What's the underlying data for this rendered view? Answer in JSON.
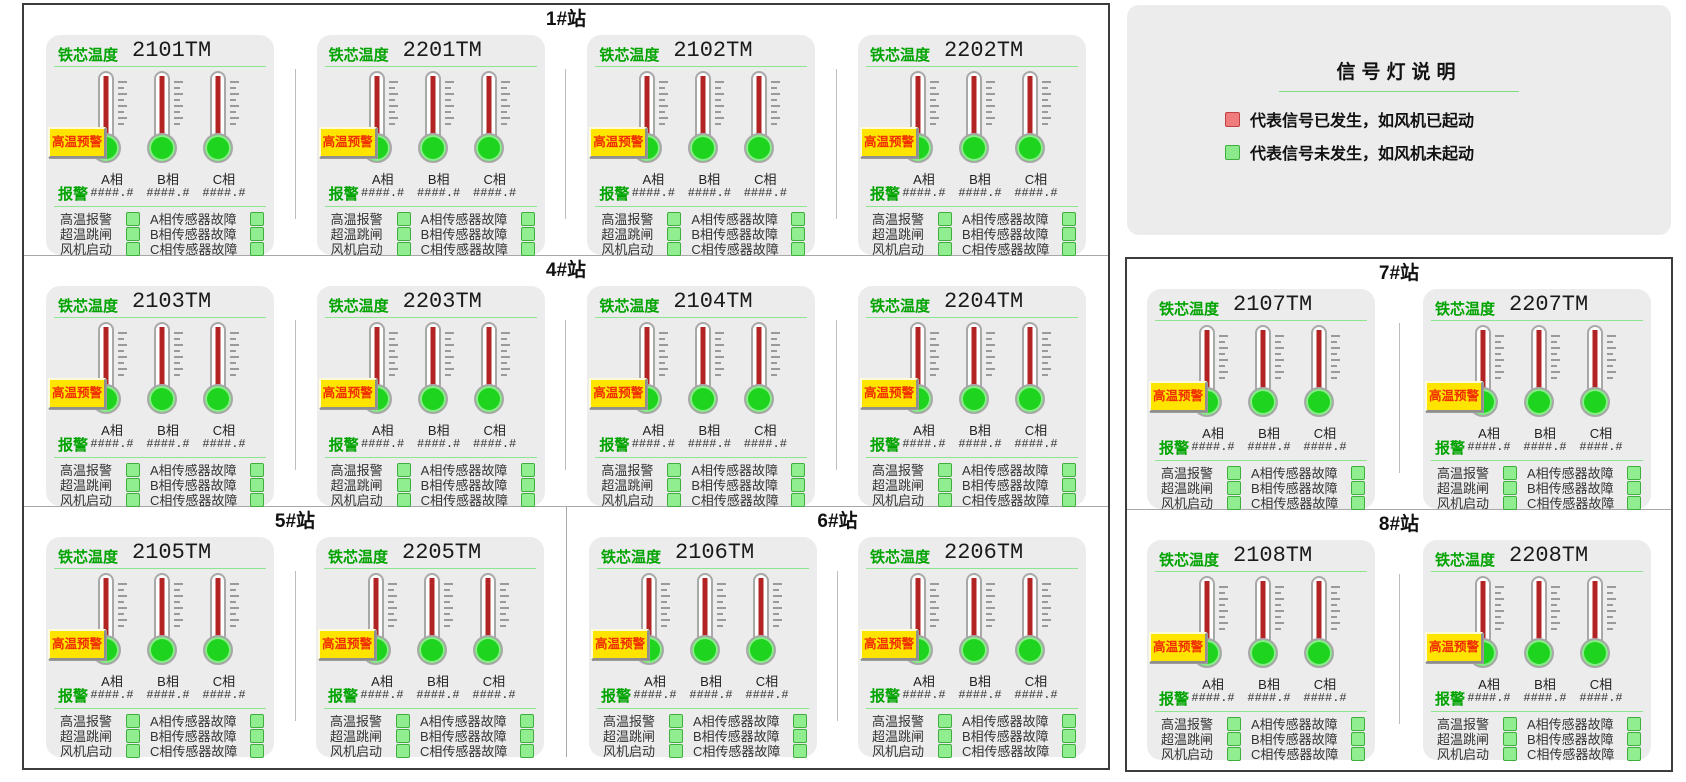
{
  "legend": {
    "title": "信号灯说明",
    "items": [
      {
        "state": "signal-occurred",
        "swatch_color": "#ef7d7d",
        "label": "代表信号已发生，如风机已起动"
      },
      {
        "state": "signal-not-occurred",
        "swatch_color": "#8cea8c",
        "label": "代表信号未发生，如风机未起动"
      }
    ]
  },
  "panel_template": {
    "header_label": "铁芯温度",
    "warning_button_label": "高温预警",
    "phases": [
      "A相",
      "B相",
      "C相"
    ],
    "value_placeholder": "####.#",
    "alarm_section_label": "报警",
    "alarm_rows": [
      {
        "left": "高温报警",
        "right": "A相传感器故障"
      },
      {
        "left": "超温跳闸",
        "right": "B相传感器故障"
      },
      {
        "left": "风机启动",
        "right": "C相传感器故障"
      }
    ]
  },
  "stations": [
    {
      "name": "1#站",
      "panels": [
        "2101TM",
        "2201TM",
        "2102TM",
        "2202TM"
      ]
    },
    {
      "name": "4#站",
      "panels": [
        "2103TM",
        "2203TM",
        "2104TM",
        "2204TM"
      ]
    },
    {
      "name": "5#站",
      "panels": [
        "2105TM",
        "2205TM"
      ]
    },
    {
      "name": "6#站",
      "panels": [
        "2106TM",
        "2206TM"
      ]
    },
    {
      "name": "7#站",
      "panels": [
        "2107TM",
        "2207TM"
      ]
    },
    {
      "name": "8#站",
      "panels": [
        "2108TM",
        "2208TM"
      ]
    }
  ],
  "colors": {
    "panel_background": "#ececec",
    "header_green": "#00a300",
    "underline_green": "#8fe48f",
    "mercury_red": "#b22424",
    "bulb_green": "#1fd41f",
    "indicator_green": "#90ee90",
    "warning_button_yellow": "#ffe400",
    "warning_text_red": "#f03000",
    "box_border": "#3c3c3c"
  }
}
